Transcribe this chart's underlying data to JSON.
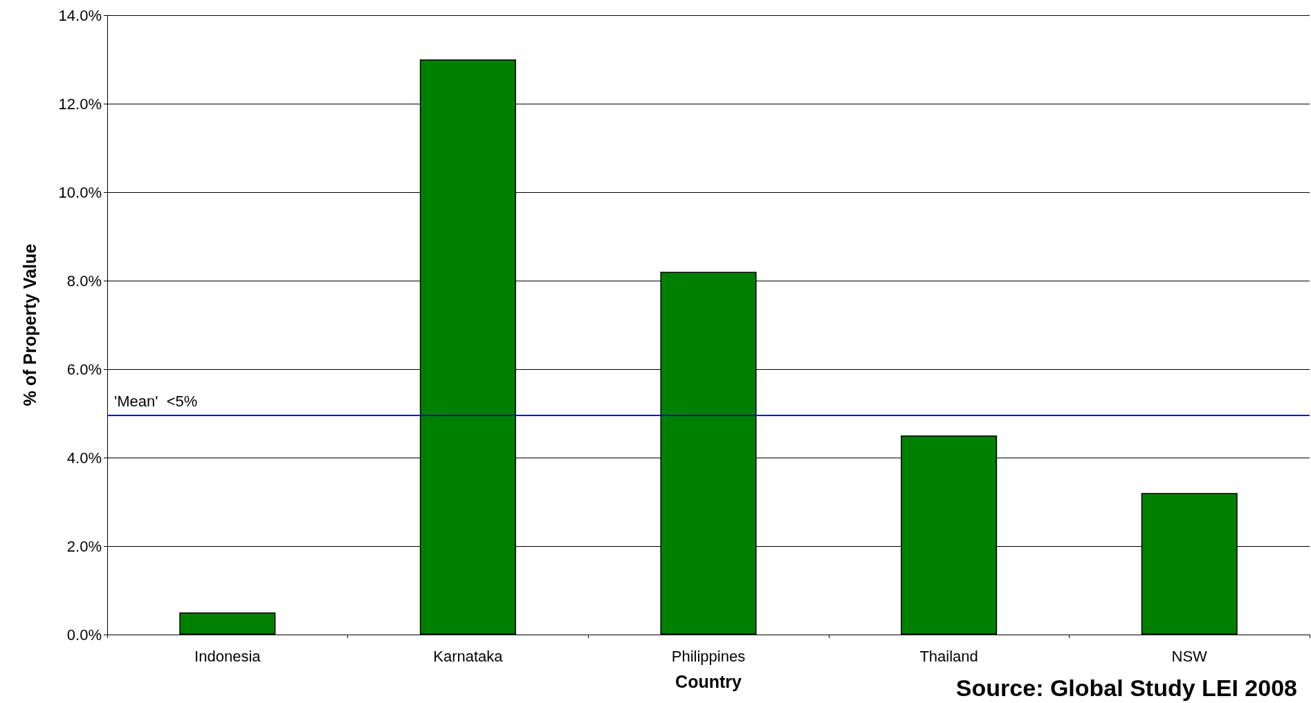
{
  "chart_data": {
    "type": "bar",
    "xlabel": "Country",
    "ylabel": "% of Property Value",
    "categories": [
      "Indonesia",
      "Karnataka",
      "Philippines",
      "Thailand",
      "NSW"
    ],
    "values": [
      0.5,
      13.0,
      8.2,
      4.5,
      3.2
    ],
    "color": "#008000",
    "ylim": [
      0,
      14
    ],
    "yticks": [
      {
        "value": 0,
        "label": "0.0%"
      },
      {
        "value": 2,
        "label": "2.0%"
      },
      {
        "value": 4,
        "label": "4.0%"
      },
      {
        "value": 6,
        "label": "6.0%"
      },
      {
        "value": 8,
        "label": "8.0%"
      },
      {
        "value": 10,
        "label": "10.0%"
      },
      {
        "value": 12,
        "label": "12.0%"
      },
      {
        "value": 14,
        "label": "14.0%"
      }
    ],
    "grid": "y",
    "ref_lines": [
      {
        "axis": "y",
        "value": 4.95,
        "label": "'Mean'  <5%",
        "color": "#0000ff"
      }
    ],
    "annotations": [
      "Source: Global Study LEI 2008"
    ]
  }
}
